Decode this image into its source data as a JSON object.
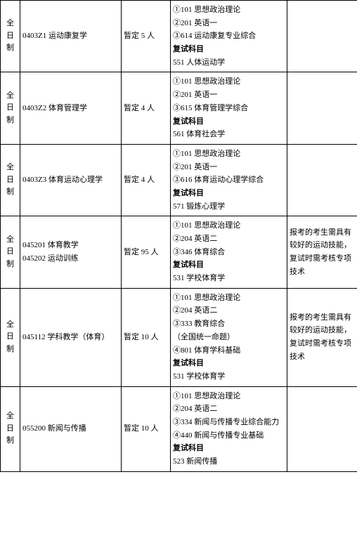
{
  "table": {
    "columns": {
      "mode_width": 28,
      "major_width": 144,
      "quota_width": 70,
      "subjects_width": 166,
      "note_width": 100
    },
    "border_color": "#000000",
    "background_color": "#ffffff",
    "font_size": 11,
    "rows": [
      {
        "mode": "全日制",
        "major": "0403Z1 运动康复学",
        "quota": "暂定 5 人",
        "subjects": [
          "①101 思想政治理论",
          "②201 英语一",
          "③614 运动康复专业综合"
        ],
        "retest_label": "复试科目",
        "retest": "551 人体运动学",
        "note": ""
      },
      {
        "mode": "全日制",
        "major": "0403Z2 体育管理学",
        "quota": "暂定 4 人",
        "subjects": [
          "①101 思想政治理论",
          "②201 英语一",
          "③615 体育管理学综合"
        ],
        "retest_label": "复试科目",
        "retest": "561 体育社会学",
        "note": ""
      },
      {
        "mode": "全日制",
        "major": "0403Z3 体育运动心理学",
        "quota": "暂定 4 人",
        "subjects": [
          "①101 思想政治理论",
          "②201 英语一",
          "③616 体育运动心理学综合"
        ],
        "retest_label": "复试科目",
        "retest": "571 锻炼心理学",
        "note": ""
      },
      {
        "mode": "全日制",
        "major_line1": "045201 体育教学",
        "major_line2": "045202 运动训练",
        "quota": "暂定 95 人",
        "subjects": [
          "①101 思想政治理论",
          "②204 英语二",
          "③346 体育综合"
        ],
        "retest_label": "复试科目",
        "retest": "531 学校体育学",
        "note": "报考的考生需具有较好的运动技能，复试时需考核专项技术"
      },
      {
        "mode": "全日制",
        "major": "045112 学科教学（体育）",
        "quota": "暂定 10 人",
        "subjects": [
          "①101 思想政治理论",
          "②204 英语二",
          "③333 教育综合",
          "（全国统一命题）",
          "④801 体育学科基础"
        ],
        "retest_label": "复试科目",
        "retest": "531 学校体育学",
        "note": "报考的考生需具有较好的运动技能，复试时需考核专项技术"
      },
      {
        "mode": "全日制",
        "major": "055200 新闻与传播",
        "quota": "暂定 10 人",
        "subjects": [
          "①101 思想政治理论",
          "②204 英语二",
          "③334 新闻与传播专业综合能力",
          "④440 新闻与传播专业基础"
        ],
        "retest_label": "复试科目",
        "retest": "523 新闻传播",
        "note": ""
      }
    ]
  }
}
